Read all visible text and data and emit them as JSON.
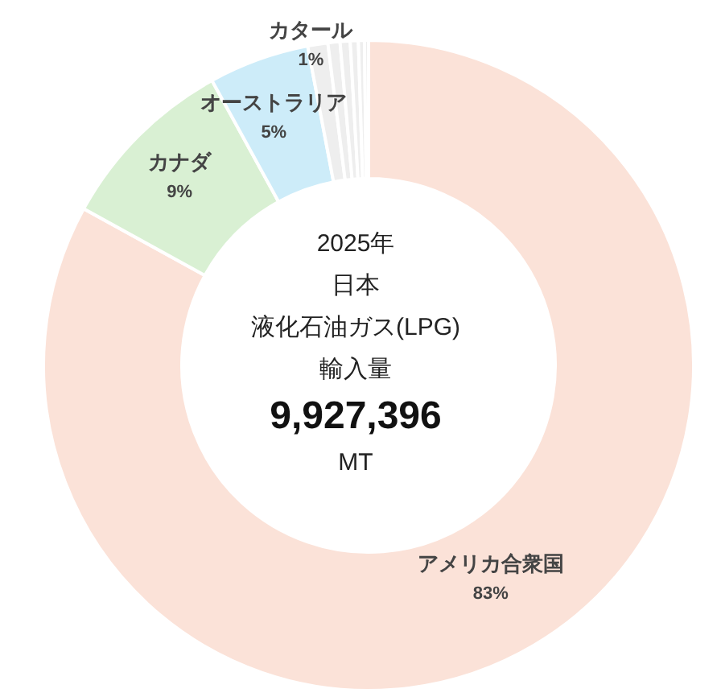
{
  "chart_data": {
    "type": "donut",
    "title": "2025年",
    "subtitle": "日本",
    "annotations": [
      "液化石油ガス(LPG)",
      "輸入量",
      "9,927,396",
      "MT"
    ],
    "categories": [
      "アメリカ合衆国",
      "カナダ",
      "オーストラリア",
      "カタール",
      null,
      null,
      null,
      null,
      null
    ],
    "values": [
      83,
      9,
      5,
      1,
      0.6,
      0.5,
      0.4,
      0.3,
      0.2
    ],
    "colors": [
      "#fbe2d8",
      "#d9f0d3",
      "#cdecf9",
      "#eeeeee",
      "#eeeeee",
      "#eeeeee",
      "#eeeeee",
      "#eeeeee",
      "#eeeeee"
    ],
    "value_labels": [
      "83%",
      "9%",
      "5%",
      "1%",
      null,
      null,
      null,
      null,
      null
    ]
  }
}
